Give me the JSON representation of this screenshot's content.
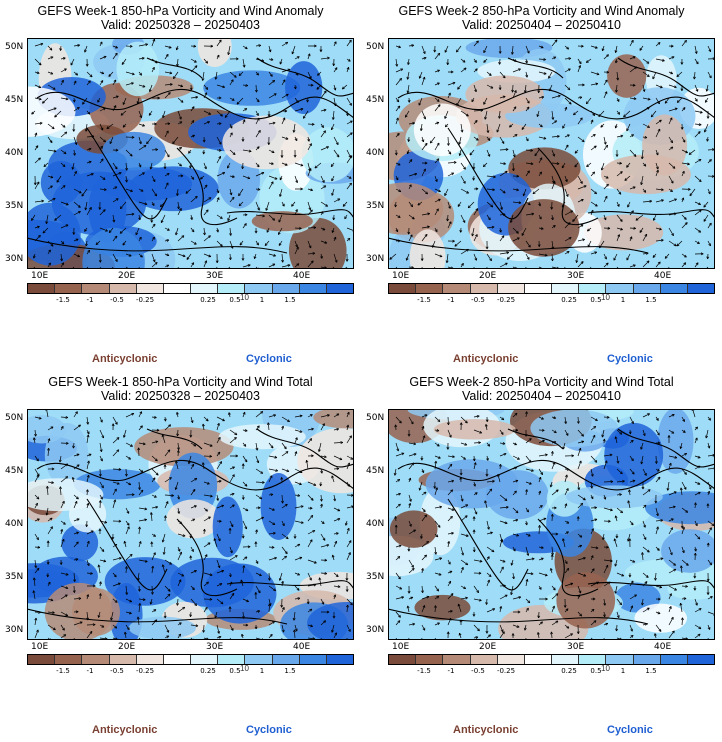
{
  "panels": [
    {
      "id": "w1-anom",
      "title": "GEFS Week-1 850-hPa Vorticity and Wind Anomaly",
      "valid": "Valid: 20250328 – 20250403"
    },
    {
      "id": "w2-anom",
      "title": "GEFS Week-2 850-hPa Vorticity and Wind Anomaly",
      "valid": "Valid: 20250404 – 20250410"
    },
    {
      "id": "w1-total",
      "title": "GEFS Week-1 850-hPa Vorticity and Wind Total",
      "valid": "Valid: 20250328 – 20250403"
    },
    {
      "id": "w2-total",
      "title": "GEFS Week-2 850-hPa Vorticity and Wind Total",
      "valid": "Valid: 20250404 – 20250410"
    }
  ],
  "lat_labels": [
    "50N",
    "45N",
    "40N",
    "35N",
    "30N"
  ],
  "lon_labels": [
    "10E",
    "20E",
    "30E",
    "40E"
  ],
  "colorbar": {
    "ticks": [
      "-1.5",
      "-1",
      "-0.5",
      "-0.25",
      "0.25",
      "0.5",
      "1",
      "1.5"
    ],
    "exponent_label": "10",
    "colors": [
      "#7a4b3a",
      "#96634f",
      "#b58b78",
      "#d6b9ab",
      "#f1e6e0",
      "#ffffff",
      "#e3f6fb",
      "#b4ecf8",
      "#8ec9f3",
      "#6aa8ec",
      "#3b86e3",
      "#1f64d9"
    ]
  },
  "legend": {
    "anticyclonic": "Anticyclonic",
    "cyclonic": "Cyclonic"
  }
}
